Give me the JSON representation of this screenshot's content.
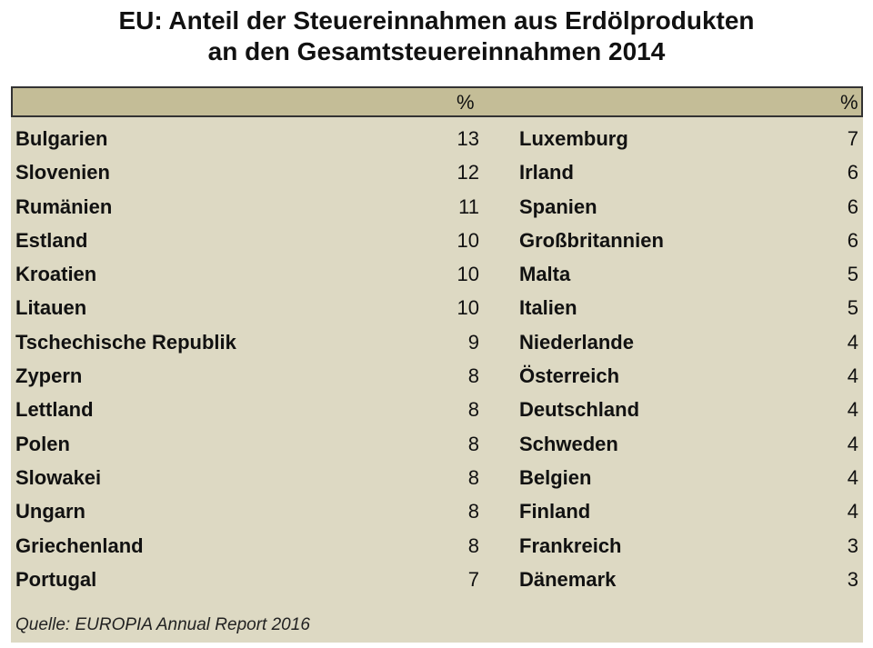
{
  "title": {
    "line1": "EU: Anteil der Steuereinnahmen aus Erdölprodukten",
    "line2": "an den Gesamtsteuereinnahmen 2014"
  },
  "header": {
    "left_unit": "%",
    "right_unit": "%"
  },
  "source": "Quelle: EUROPIA Annual Report 2016",
  "colors": {
    "panel_background": "#ddd9c3",
    "header_band": "#c4bd97",
    "header_border": "#333333"
  },
  "chart_data": {
    "type": "table",
    "title": "EU: Anteil der Steuereinnahmen aus Erdölprodukten an den Gesamtsteuereinnahmen 2014",
    "columns": [
      "",
      "%"
    ],
    "left": [
      {
        "country": "Bulgarien",
        "value": 13
      },
      {
        "country": "Slovenien",
        "value": 12
      },
      {
        "country": "Rumänien",
        "value": 11
      },
      {
        "country": "Estland",
        "value": 10
      },
      {
        "country": "Kroatien",
        "value": 10
      },
      {
        "country": "Litauen",
        "value": 10
      },
      {
        "country": "Tschechische Republik",
        "value": 9
      },
      {
        "country": "Zypern",
        "value": 8
      },
      {
        "country": "Lettland",
        "value": 8
      },
      {
        "country": "Polen",
        "value": 8
      },
      {
        "country": "Slowakei",
        "value": 8
      },
      {
        "country": "Ungarn",
        "value": 8
      },
      {
        "country": "Griechenland",
        "value": 8
      },
      {
        "country": "Portugal",
        "value": 7
      }
    ],
    "right": [
      {
        "country": "Luxemburg",
        "value": 7
      },
      {
        "country": "Irland",
        "value": 6
      },
      {
        "country": "Spanien",
        "value": 6
      },
      {
        "country": "Großbritannien",
        "value": 6
      },
      {
        "country": "Malta",
        "value": 5
      },
      {
        "country": "Italien",
        "value": 5
      },
      {
        "country": "Niederlande",
        "value": 4
      },
      {
        "country": "Österreich",
        "value": 4
      },
      {
        "country": "Deutschland",
        "value": 4
      },
      {
        "country": "Schweden",
        "value": 4
      },
      {
        "country": "Belgien",
        "value": 4
      },
      {
        "country": "Finland",
        "value": 4
      },
      {
        "country": "Frankreich",
        "value": 3
      },
      {
        "country": "Dänemark",
        "value": 3
      }
    ]
  }
}
